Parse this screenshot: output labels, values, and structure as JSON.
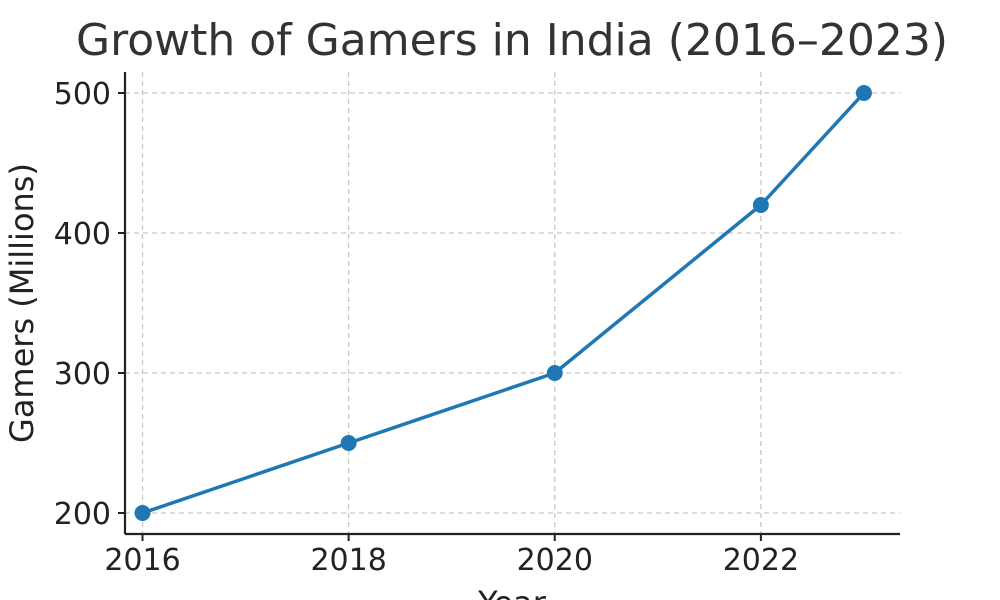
{
  "chart_data": {
    "type": "line",
    "title": "Growth of Gamers in India (2016–2023)",
    "xlabel": "Year",
    "ylabel": "Gamers (Millions)",
    "x": [
      2016,
      2018,
      2020,
      2022,
      2023
    ],
    "xticks": [
      2016,
      2018,
      2020,
      2022
    ],
    "yticks": [
      200,
      300,
      400,
      500
    ],
    "xlim": [
      2015.83,
      2023.35
    ],
    "ylim": [
      185,
      515
    ],
    "grid": true,
    "series": [
      {
        "name": "Gamers (Millions)",
        "values": [
          200,
          250,
          300,
          420,
          500
        ]
      }
    ],
    "colors": {
      "line": "#1f77b4",
      "marker": "#1f77b4"
    }
  }
}
